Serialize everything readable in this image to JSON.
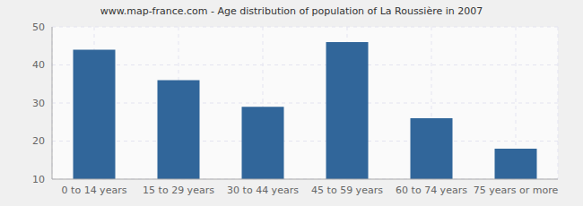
{
  "chart_data": {
    "type": "bar",
    "title": "www.map-france.com - Age distribution of population of La Roussière in 2007",
    "categories": [
      "0 to 14 years",
      "15 to 29 years",
      "30 to 44 years",
      "45 to 59 years",
      "60 to 74 years",
      "75 years or more"
    ],
    "values": [
      44,
      36,
      29,
      46,
      26,
      18
    ],
    "color": "#31669a",
    "ylim": [
      10,
      50
    ],
    "yticks": [
      10,
      20,
      30,
      40,
      50
    ],
    "grid": true
  }
}
